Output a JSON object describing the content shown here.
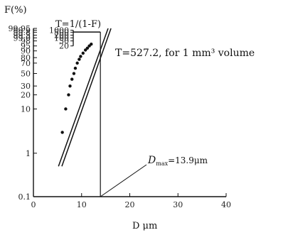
{
  "chart_data": {
    "type": "scatter",
    "y_scale": "weibull-probability",
    "x": {
      "label": "D  μm",
      "ticks": [
        0,
        10,
        20,
        30,
        40
      ],
      "range": [
        0,
        40
      ]
    },
    "y": {
      "label": "F(%)",
      "ticks": [
        0.1,
        1,
        10,
        20,
        30,
        50,
        70,
        80,
        90,
        95,
        98,
        99.0,
        99.5,
        99.8,
        99.9,
        99.95
      ],
      "tick_labels": [
        "0.1",
        "1",
        "10",
        "20",
        "30",
        "50",
        "70",
        "80",
        "90",
        "95",
        "98",
        "99.0",
        "99.5",
        "99.8",
        "99.9",
        "99.95"
      ]
    },
    "return_period_axis": {
      "label": "T=1/(1-F)",
      "ticks": [
        20,
        50,
        100,
        200,
        500,
        1000
      ],
      "tick_labels": [
        "20",
        "50",
        "100",
        "200",
        "500",
        "1000"
      ]
    },
    "points": [
      {
        "d": 6.0,
        "f": 3
      },
      {
        "d": 6.7,
        "f": 10
      },
      {
        "d": 7.3,
        "f": 20
      },
      {
        "d": 7.6,
        "f": 30
      },
      {
        "d": 8.0,
        "f": 40
      },
      {
        "d": 8.4,
        "f": 50
      },
      {
        "d": 8.7,
        "f": 60
      },
      {
        "d": 9.1,
        "f": 70
      },
      {
        "d": 9.5,
        "f": 77
      },
      {
        "d": 9.8,
        "f": 82
      },
      {
        "d": 10.3,
        "f": 87
      },
      {
        "d": 10.8,
        "f": 91
      },
      {
        "d": 11.2,
        "f": 93
      },
      {
        "d": 11.6,
        "f": 95
      },
      {
        "d": 12.0,
        "f": 96.3
      }
    ],
    "fit_lines": [
      {
        "from": {
          "d": 5.2,
          "f": 0.5
        },
        "to": {
          "d": 15.5,
          "f": 99.95
        }
      },
      {
        "from": {
          "d": 5.9,
          "f": 0.5
        },
        "to": {
          "d": 16.1,
          "f": 99.95
        }
      }
    ],
    "annotations": {
      "t_value": "T=527.2, for 1 mm³ volume",
      "t_level": 527.2,
      "dmax_label": "D",
      "dmax_sub": "max",
      "dmax_value": "=13.9μm",
      "dmax": 13.9
    }
  }
}
